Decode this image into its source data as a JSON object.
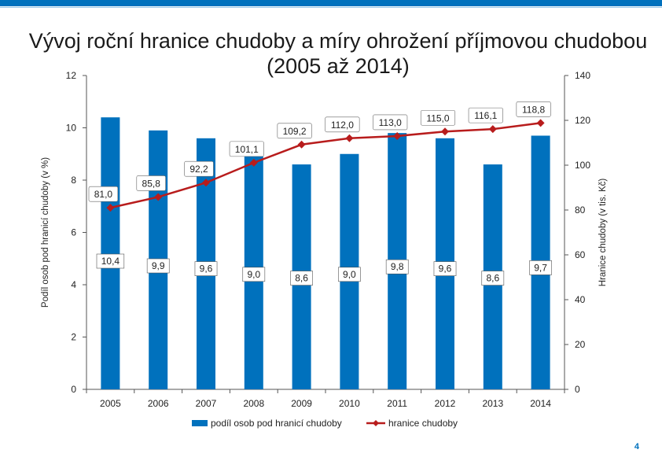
{
  "page": {
    "title": "Vývoj roční hranice chudoby a míry ohrožení příjmovou chudobou (2005 až 2014)",
    "page_number": "4"
  },
  "chart_data": {
    "type": "bar",
    "title": "Vývoj roční hranice chudoby a míry ohrožení příjmovou chudobou (2005 až 2014)",
    "categories": [
      "2005",
      "2006",
      "2007",
      "2008",
      "2009",
      "2010",
      "2011",
      "2012",
      "2013",
      "2014"
    ],
    "series": [
      {
        "name": "podíl osob pod hranicí chudoby",
        "type": "bar",
        "axis": "left",
        "color": "#0071bd",
        "values": [
          10.4,
          9.9,
          9.6,
          9.0,
          8.6,
          9.0,
          9.8,
          9.6,
          8.6,
          9.7
        ],
        "labels": [
          "10,4",
          "9,9",
          "9,6",
          "9,0",
          "8,6",
          "9,0",
          "9,8",
          "9,6",
          "8,6",
          "9,7"
        ]
      },
      {
        "name": "hranice chudoby",
        "type": "line",
        "axis": "right",
        "color": "#b81c1c",
        "values": [
          81.0,
          85.8,
          92.2,
          101.1,
          109.2,
          112.0,
          113.0,
          115.0,
          116.1,
          118.8
        ],
        "labels": [
          "81,0",
          "85,8",
          "92,2",
          "101,1",
          "109,2",
          "112,0",
          "113,0",
          "115,0",
          "116,1",
          "118,8"
        ]
      }
    ],
    "ylabel": "Podíl osob pod hranicí chudoby (v %)",
    "ylabel_right": "Hranice chudoby (v tis. Kč)",
    "ylim": [
      0,
      12
    ],
    "ylim_right": [
      0,
      140
    ],
    "yticks": [
      "0",
      "2",
      "4",
      "6",
      "8",
      "10",
      "12"
    ],
    "yticks_right": [
      "0",
      "20",
      "40",
      "60",
      "80",
      "100",
      "120",
      "140"
    ],
    "legend_position": "bottom",
    "grid": false
  }
}
